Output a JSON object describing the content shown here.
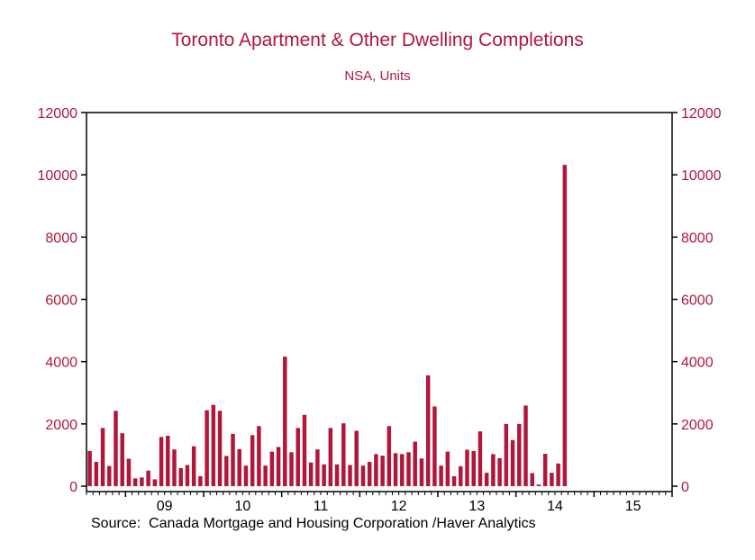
{
  "chart_data": {
    "type": "bar",
    "title": "Toronto Apartment & Other Dwelling Completions",
    "subtitle": "NSA, Units",
    "xlabel": "",
    "ylabel": "",
    "ylim": [
      0,
      12000
    ],
    "yticks": [
      0,
      2000,
      4000,
      6000,
      8000,
      10000,
      12000
    ],
    "xtick_labels": [
      "09",
      "10",
      "11",
      "12",
      "13",
      "14",
      "15"
    ],
    "start": "2008-07",
    "end": "2015-12",
    "grid": false,
    "legend": "none",
    "bar_color": "#b0173a",
    "axis_color": "#000000",
    "label_color": "#b0173a",
    "categories": [
      "2008-07",
      "2008-08",
      "2008-09",
      "2008-10",
      "2008-11",
      "2008-12",
      "2009-01",
      "2009-02",
      "2009-03",
      "2009-04",
      "2009-05",
      "2009-06",
      "2009-07",
      "2009-08",
      "2009-09",
      "2009-10",
      "2009-11",
      "2009-12",
      "2010-01",
      "2010-02",
      "2010-03",
      "2010-04",
      "2010-05",
      "2010-06",
      "2010-07",
      "2010-08",
      "2010-09",
      "2010-10",
      "2010-11",
      "2010-12",
      "2011-01",
      "2011-02",
      "2011-03",
      "2011-04",
      "2011-05",
      "2011-06",
      "2011-07",
      "2011-08",
      "2011-09",
      "2011-10",
      "2011-11",
      "2011-12",
      "2012-01",
      "2012-02",
      "2012-03",
      "2012-04",
      "2012-05",
      "2012-06",
      "2012-07",
      "2012-08",
      "2012-09",
      "2012-10",
      "2012-11",
      "2012-12",
      "2013-01",
      "2013-02",
      "2013-03",
      "2013-04",
      "2013-05",
      "2013-06",
      "2013-07",
      "2013-08",
      "2013-09",
      "2013-10",
      "2013-11",
      "2013-12",
      "2014-01",
      "2014-02",
      "2014-03",
      "2014-04",
      "2014-05",
      "2014-06",
      "2014-07",
      "2014-08",
      "2014-09",
      "2014-10",
      "2014-11",
      "2014-12",
      "2015-01"
    ],
    "values": [
      1130,
      780,
      1870,
      650,
      2420,
      1700,
      880,
      250,
      280,
      500,
      220,
      1580,
      1620,
      1180,
      580,
      680,
      1280,
      320,
      2440,
      2610,
      2420,
      970,
      1680,
      1190,
      660,
      1640,
      1930,
      660,
      1110,
      1260,
      4160,
      1090,
      1870,
      2290,
      760,
      1180,
      700,
      1870,
      700,
      2020,
      680,
      1780,
      660,
      780,
      1030,
      980,
      1930,
      1060,
      1030,
      1090,
      1430,
      890,
      3560,
      2560,
      660,
      1110,
      320,
      640,
      1170,
      1130,
      1760,
      430,
      1030,
      900,
      2000,
      1480,
      2000,
      2590,
      420,
      50,
      1040,
      430,
      730,
      10320,
      0,
      0,
      0,
      0,
      0
    ]
  },
  "source_text": "Source:  Canada Mortgage and Housing Corporation /Haver Analytics"
}
